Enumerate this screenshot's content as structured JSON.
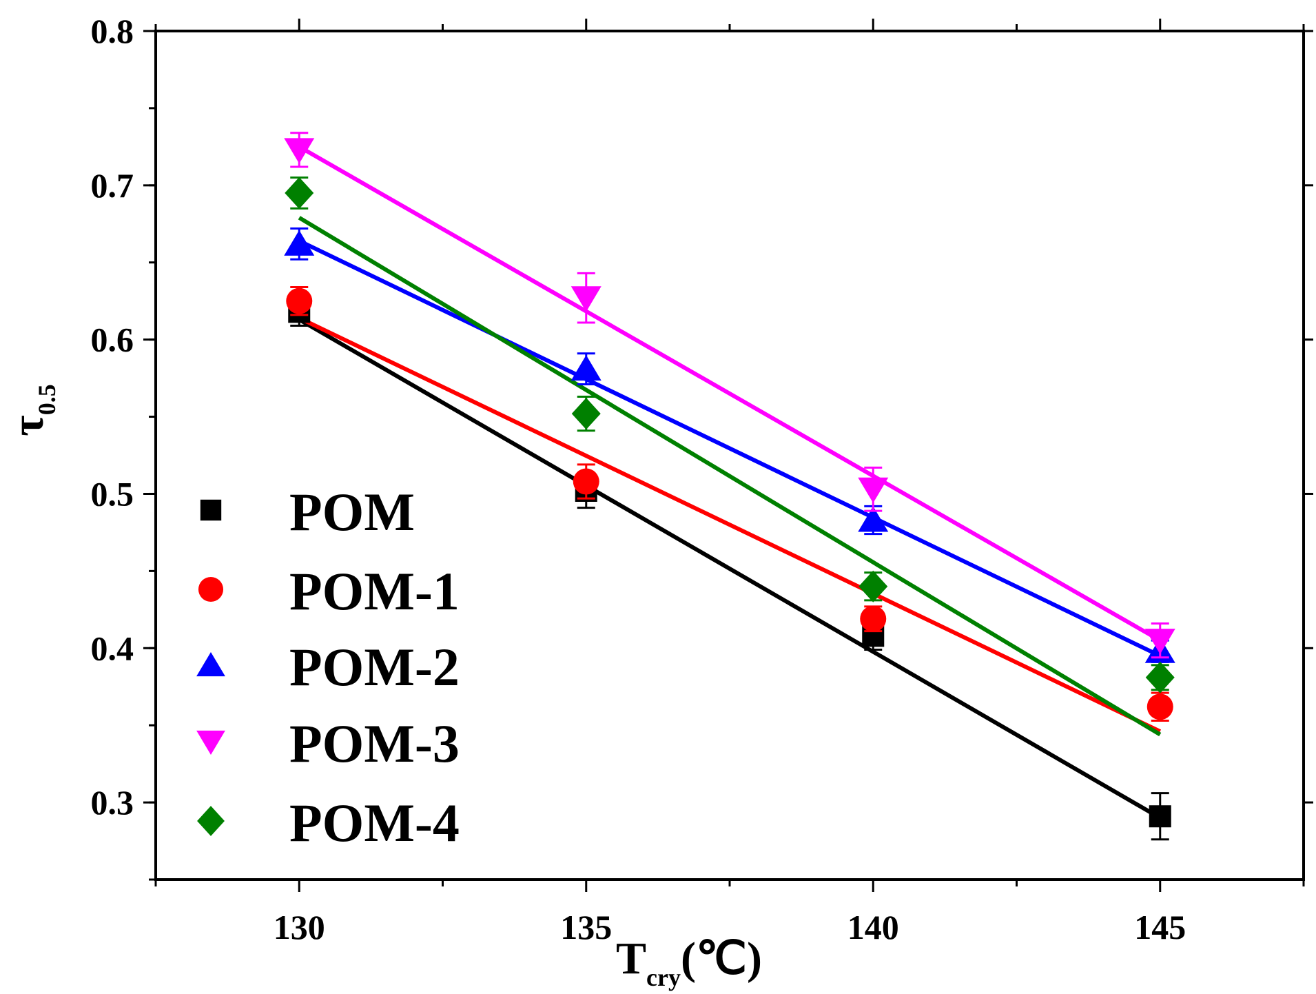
{
  "chart_data": {
    "type": "scatter",
    "title": "",
    "xlabel": {
      "main": "T",
      "sub": "cry",
      "unit": "(℃)"
    },
    "ylabel": {
      "main": "τ",
      "sub": "0.5"
    },
    "xlim": [
      127.5,
      147.5
    ],
    "ylim": [
      0.25,
      0.8
    ],
    "xticks": [
      130,
      135,
      140,
      145
    ],
    "xtick_labels": [
      "130",
      "135",
      "140",
      "145"
    ],
    "yticks": [
      0.3,
      0.4,
      0.5,
      0.6,
      0.7,
      0.8
    ],
    "ytick_labels": [
      "0.3",
      "0.4",
      "0.5",
      "0.6",
      "0.7",
      "0.8"
    ],
    "legend_position": "bottom-left",
    "x": [
      130,
      135,
      140,
      145
    ],
    "series": [
      {
        "name": "POM",
        "marker": "square",
        "color": "#000000",
        "values": [
          0.618,
          0.502,
          0.408,
          0.291
        ],
        "error": [
          0.009,
          0.011,
          0.009,
          0.015
        ],
        "fit": {
          "start": 0.613,
          "end": 0.29
        }
      },
      {
        "name": "POM-1",
        "marker": "circle",
        "color": "#ff0000",
        "values": [
          0.625,
          0.508,
          0.419,
          0.362
        ],
        "error": [
          0.009,
          0.011,
          0.008,
          0.009
        ],
        "fit": {
          "start": 0.614,
          "end": 0.346
        }
      },
      {
        "name": "POM-2",
        "marker": "triangle-up",
        "color": "#0000ff",
        "values": [
          0.662,
          0.581,
          0.483,
          0.398
        ],
        "error": [
          0.01,
          0.01,
          0.009,
          0.007
        ],
        "fit": {
          "start": 0.664,
          "end": 0.395
        }
      },
      {
        "name": "POM-3",
        "marker": "triangle-down",
        "color": "#ff00ff",
        "values": [
          0.723,
          0.627,
          0.503,
          0.405
        ],
        "error": [
          0.011,
          0.016,
          0.014,
          0.011
        ],
        "fit": {
          "start": 0.725,
          "end": 0.405
        }
      },
      {
        "name": "POM-4",
        "marker": "diamond",
        "color": "#008000",
        "values": [
          0.695,
          0.552,
          0.44,
          0.381
        ],
        "error": [
          0.01,
          0.011,
          0.009,
          0.008
        ],
        "fit": {
          "start": 0.679,
          "end": 0.344
        }
      }
    ]
  }
}
